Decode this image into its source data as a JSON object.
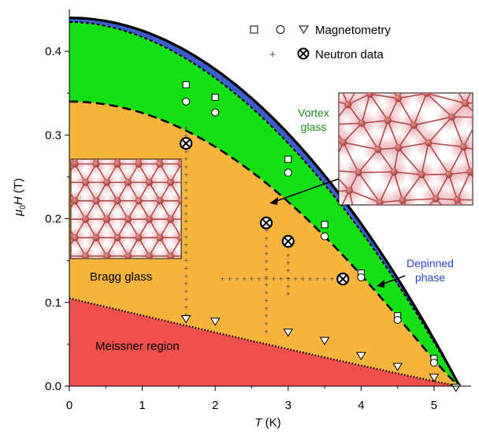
{
  "chart_data": {
    "type": "area",
    "title": "",
    "xlabel": "T (K)",
    "ylabel": "μ0H (T)",
    "xlim": [
      0,
      5.4
    ],
    "ylim": [
      0,
      0.45
    ],
    "x_ticks": [
      "0",
      "1",
      "2",
      "3",
      "4",
      "5"
    ],
    "y_ticks": [
      "0.0",
      "0.1",
      "0.2",
      "0.3",
      "0.4"
    ],
    "grid": false,
    "legend": {
      "placement": "top-right",
      "entries": [
        "Magnetometry",
        "Neutron data"
      ]
    },
    "regions": [
      {
        "label": "Meissner region",
        "color": "#f0504c"
      },
      {
        "label": "Bragg glass",
        "color": "#f7b43c"
      },
      {
        "label": "Vortex glass",
        "color": "#12e012"
      },
      {
        "label": "Depinned phase",
        "color": "#3a5ccc"
      }
    ],
    "boundaries": {
      "Tc": 5.35,
      "upper_critical_field_at_0K": 0.44,
      "vortex_glass_upper_at_0K": 0.435,
      "bragg_glass_upper_at_0K": 0.34,
      "meissner_upper_at_0K": 0.105
    },
    "annotations": [
      {
        "text": "Vortex glass",
        "color": "#1a8a1a"
      },
      {
        "text": "Depinned phase",
        "color": "#2a44cc"
      },
      {
        "text": "Bragg glass",
        "color": "#000000"
      },
      {
        "text": "Meissner region",
        "color": "#000000"
      }
    ],
    "magnetometry_squares": [
      [
        1.6,
        0.36
      ],
      [
        2.0,
        0.345
      ],
      [
        3.0,
        0.271
      ],
      [
        3.5,
        0.193
      ],
      [
        4.0,
        0.135
      ],
      [
        4.5,
        0.084
      ],
      [
        5.0,
        0.033
      ]
    ],
    "magnetometry_circles": [
      [
        1.6,
        0.34
      ],
      [
        2.0,
        0.327
      ],
      [
        3.0,
        0.255
      ],
      [
        3.5,
        0.179
      ],
      [
        4.0,
        0.13
      ],
      [
        4.5,
        0.079
      ],
      [
        5.0,
        0.028
      ]
    ],
    "magnetometry_triangles": [
      [
        1.6,
        0.08
      ],
      [
        2.0,
        0.077
      ],
      [
        3.0,
        0.064
      ],
      [
        3.5,
        0.054
      ],
      [
        4.0,
        0.036
      ],
      [
        4.5,
        0.023
      ],
      [
        5.0,
        0.01
      ],
      [
        5.3,
        -0.002
      ]
    ],
    "neutron_points": [
      [
        1.6,
        0.29
      ],
      [
        2.7,
        0.195
      ],
      [
        3.0,
        0.173
      ],
      [
        3.75,
        0.128
      ]
    ],
    "neutron_scans": {
      "vertical": [
        {
          "T": 1.6,
          "H_from": 0.085,
          "H_to": 0.31
        },
        {
          "T": 2.7,
          "H_from": 0.065,
          "H_to": 0.2
        },
        {
          "T": 3.0,
          "H_from": 0.11,
          "H_to": 0.17
        }
      ],
      "horizontal": [
        {
          "H": 0.128,
          "T_from": 2.1,
          "T_to": 3.7
        }
      ]
    }
  }
}
